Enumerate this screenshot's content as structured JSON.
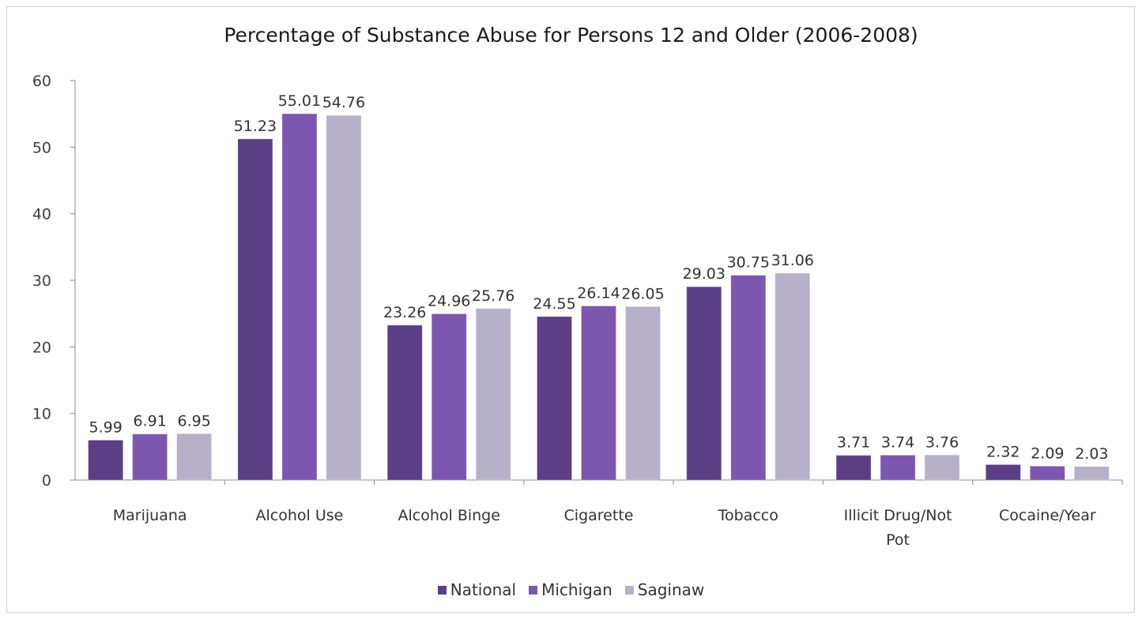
{
  "chart_data": {
    "type": "bar",
    "title": "Percentage of Substance Abuse for Persons 12 and Older (2006-2008)",
    "xlabel": "",
    "ylabel": "",
    "ylim": [
      0,
      60
    ],
    "yticks": [
      "0",
      "10",
      "20",
      "30",
      "40",
      "50",
      "60"
    ],
    "grid": false,
    "legend_position": "bottom",
    "categories": [
      "Marijuana",
      "Alcohol Use",
      "Alcohol Binge",
      "Cigarette",
      "Tobacco",
      "Illicit Drug/Not Pot",
      "Cocaine/Year"
    ],
    "series": [
      {
        "name": "National",
        "color": "#5a3f87",
        "values": [
          5.99,
          51.23,
          23.26,
          24.55,
          29.03,
          3.71,
          2.32
        ]
      },
      {
        "name": "Michigan",
        "color": "#7d56b0",
        "values": [
          6.91,
          55.01,
          24.96,
          26.14,
          30.75,
          3.74,
          2.09
        ]
      },
      {
        "name": "Saginaw",
        "color": "#b6b0c9",
        "values": [
          6.95,
          54.76,
          25.76,
          26.05,
          31.06,
          3.76,
          2.03
        ]
      }
    ]
  }
}
